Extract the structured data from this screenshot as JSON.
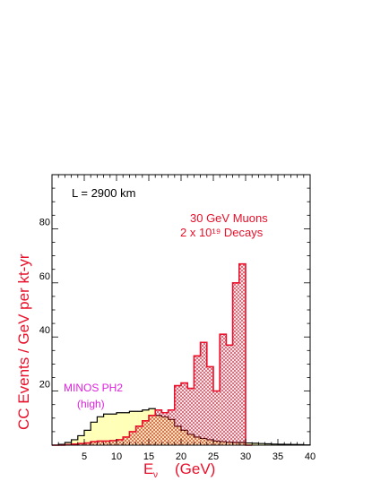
{
  "chart_data": {
    "type": "bar",
    "title": "",
    "xlabel": "Eν   (GeV)",
    "xlabel_main": "E",
    "xlabel_sub": "ν",
    "xlabel_unit": "(GeV)",
    "ylabel": "CC Events / GeV per kt-yr",
    "xlim": [
      0,
      40
    ],
    "ylim": [
      0,
      100
    ],
    "x_ticks": [
      "5",
      "10",
      "15",
      "20",
      "25",
      "30",
      "35",
      "40"
    ],
    "y_ticks": [
      "20",
      "40",
      "60",
      "80"
    ],
    "bin_width": 1,
    "annotations": {
      "baseline": "L = 2900 km",
      "muon_line1": "30 GeV Muons",
      "muon_line2": "2 x 10¹⁹ Decays",
      "minos_line1": "MINOS PH2",
      "minos_line2": "(high)"
    },
    "series": [
      {
        "name": "MINOS PH2 (high)",
        "style": "filled-yellow",
        "bin_starts": [
          0,
          1,
          2,
          3,
          4,
          5,
          6,
          7,
          8,
          9,
          10,
          11,
          12,
          13,
          14,
          15,
          16,
          17,
          18,
          19,
          20,
          21,
          22,
          23,
          24,
          25,
          26,
          27,
          28,
          29,
          30,
          31,
          32,
          33,
          34,
          35,
          36,
          37,
          38,
          39
        ],
        "values": [
          0,
          0.3,
          1,
          2,
          3.5,
          5.5,
          8.5,
          10.5,
          11.5,
          11.5,
          12,
          12,
          12.5,
          12.5,
          13,
          13.5,
          11,
          10.5,
          9.5,
          7,
          5.5,
          4,
          3,
          2.5,
          2,
          1.5,
          1.3,
          1.1,
          1,
          1,
          0.8,
          0.7,
          0.6,
          0.5,
          0.4,
          0.35,
          0.3,
          0.25,
          0.2,
          0.1
        ]
      },
      {
        "name": "30 GeV Muons",
        "style": "hatched-red",
        "bin_starts": [
          0,
          1,
          2,
          3,
          4,
          5,
          6,
          7,
          8,
          9,
          10,
          11,
          12,
          13,
          14,
          15,
          16,
          17,
          18,
          19,
          20,
          21,
          22,
          23,
          24,
          25,
          26,
          27,
          28,
          29,
          30
        ],
        "values": [
          0,
          0,
          0.2,
          0.4,
          0.6,
          0.8,
          1.3,
          1.5,
          1.5,
          1.7,
          2,
          3,
          5,
          7,
          9,
          11,
          13,
          12,
          13,
          22,
          23,
          21,
          33,
          38,
          29,
          20,
          41,
          37,
          60,
          67,
          0
        ]
      }
    ],
    "colors": {
      "red": "#e8102a",
      "yellow_fill": "#ffffb8",
      "magenta": "#e020e0",
      "axis": "#000000"
    }
  }
}
